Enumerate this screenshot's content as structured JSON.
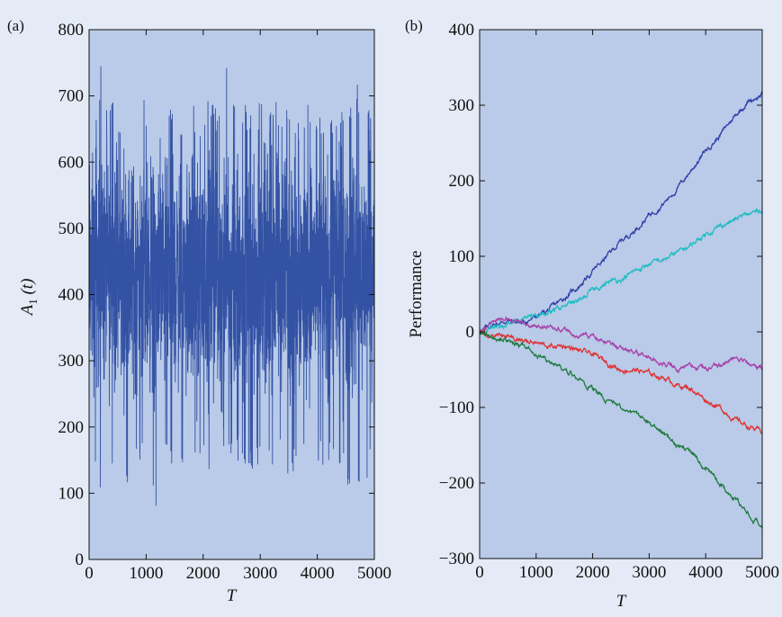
{
  "figure": {
    "background": "#e4ebf6",
    "plot_background": "#b9cbe8"
  },
  "chart_data": [
    {
      "type": "line",
      "panel_label": "(a)",
      "title": "",
      "xlabel": "T",
      "ylabel_main": "A",
      "ylabel_sub": "1",
      "ylabel_tail": " (t)",
      "xlim": [
        0,
        5000
      ],
      "ylim": [
        0,
        800
      ],
      "xticks": [
        0,
        1000,
        2000,
        3000,
        4000,
        5000
      ],
      "xtick_labels": [
        "0",
        "1000",
        "2000",
        "3000",
        "4000",
        "5000"
      ],
      "yticks": [
        0,
        100,
        200,
        300,
        400,
        500,
        600,
        700,
        800
      ],
      "ytick_labels": [
        "0",
        "100",
        "200",
        "300",
        "400",
        "500",
        "600",
        "700",
        "800"
      ],
      "grid": false,
      "series": [
        {
          "color": "#3452a3",
          "description_of_shape": "dense noisy fluctuation around ~430 over T=0..5000",
          "x": [
            0,
            50,
            100,
            150,
            200,
            300,
            400,
            500,
            600,
            700,
            800,
            900,
            1000,
            1100,
            1200,
            1250,
            1300,
            1400,
            1500,
            1600,
            1700,
            1800,
            1900,
            2000,
            2100,
            2200,
            2300,
            2400,
            2500,
            2600,
            2700,
            2800,
            2900,
            3000,
            3100,
            3200,
            3300,
            3400,
            3500,
            3600,
            3700,
            3800,
            3900,
            4000,
            4100,
            4200,
            4300,
            4400,
            4500,
            4600,
            4700,
            4800,
            4900,
            5000
          ],
          "upper_envelope": [
            690,
            770,
            730,
            650,
            760,
            690,
            700,
            660,
            700,
            690,
            660,
            710,
            690,
            700,
            730,
            660,
            700,
            690,
            690,
            680,
            660,
            700,
            690,
            660,
            700,
            690,
            690,
            750,
            700,
            690,
            700,
            680,
            660,
            700,
            690,
            680,
            700,
            670,
            690,
            680,
            660,
            680,
            700,
            690,
            680,
            680,
            680,
            690,
            660,
            700,
            720,
            700,
            680,
            660
          ],
          "lower_envelope": [
            250,
            170,
            140,
            100,
            80,
            140,
            130,
            150,
            90,
            100,
            140,
            130,
            150,
            110,
            30,
            140,
            150,
            130,
            140,
            150,
            140,
            150,
            130,
            140,
            130,
            160,
            150,
            170,
            140,
            150,
            130,
            140,
            120,
            140,
            150,
            130,
            140,
            150,
            120,
            130,
            150,
            140,
            120,
            150,
            140,
            150,
            130,
            140,
            110,
            70,
            90,
            100,
            120,
            180
          ]
        }
      ]
    },
    {
      "type": "line",
      "panel_label": "(b)",
      "title": "",
      "xlabel": "T",
      "ylabel": "Performance",
      "xlim": [
        0,
        5000
      ],
      "ylim": [
        -300,
        400
      ],
      "xticks": [
        0,
        1000,
        2000,
        3000,
        4000,
        5000
      ],
      "xtick_labels": [
        "0",
        "1000",
        "2000",
        "3000",
        "4000",
        "5000"
      ],
      "yticks": [
        -300,
        -200,
        -100,
        0,
        100,
        200,
        300,
        400
      ],
      "ytick_labels": [
        "−300",
        "−200",
        "−100",
        "0",
        "100",
        "200",
        "300",
        "400"
      ],
      "grid": false,
      "series": [
        {
          "color": "#2e3fa8",
          "x": [
            0,
            250,
            500,
            750,
            1000,
            1250,
            1500,
            1750,
            2000,
            2250,
            2500,
            2750,
            3000,
            3250,
            3500,
            3750,
            4000,
            4250,
            4500,
            4750,
            5000
          ],
          "y": [
            0,
            10,
            15,
            12,
            20,
            30,
            45,
            60,
            80,
            100,
            120,
            135,
            155,
            170,
            190,
            215,
            240,
            260,
            285,
            305,
            315
          ]
        },
        {
          "color": "#1fbcc2",
          "x": [
            0,
            250,
            500,
            750,
            1000,
            1250,
            1500,
            1750,
            2000,
            2250,
            2500,
            2750,
            3000,
            3250,
            3500,
            3750,
            4000,
            4250,
            4500,
            4750,
            5000
          ],
          "y": [
            0,
            8,
            10,
            15,
            22,
            25,
            35,
            40,
            55,
            65,
            70,
            80,
            90,
            95,
            105,
            115,
            130,
            140,
            148,
            155,
            162
          ]
        },
        {
          "color": "#a83ea8",
          "x": [
            0,
            250,
            500,
            750,
            1000,
            1250,
            1500,
            1750,
            2000,
            2250,
            2500,
            2750,
            3000,
            3250,
            3500,
            3750,
            4000,
            4250,
            4500,
            4750,
            5000
          ],
          "y": [
            0,
            15,
            18,
            12,
            5,
            8,
            0,
            -5,
            -5,
            -12,
            -20,
            -30,
            -35,
            -42,
            -48,
            -45,
            -48,
            -45,
            -35,
            -38,
            -48
          ]
        },
        {
          "color": "#e03030",
          "x": [
            0,
            250,
            500,
            750,
            1000,
            1250,
            1500,
            1750,
            2000,
            2250,
            2500,
            2750,
            3000,
            3250,
            3500,
            3750,
            4000,
            4250,
            4500,
            4750,
            5000
          ],
          "y": [
            0,
            -5,
            -8,
            -12,
            -15,
            -20,
            -18,
            -25,
            -30,
            -40,
            -50,
            -50,
            -55,
            -60,
            -70,
            -75,
            -90,
            -100,
            -115,
            -125,
            -133
          ]
        },
        {
          "color": "#1f7a3f",
          "x": [
            0,
            250,
            500,
            750,
            1000,
            1250,
            1500,
            1750,
            2000,
            2250,
            2500,
            2750,
            3000,
            3250,
            3500,
            3750,
            4000,
            4250,
            4500,
            4750,
            5000
          ],
          "y": [
            0,
            -8,
            -12,
            -18,
            -30,
            -40,
            -50,
            -60,
            -75,
            -90,
            -100,
            -110,
            -122,
            -135,
            -150,
            -160,
            -180,
            -200,
            -220,
            -240,
            -255
          ]
        }
      ]
    }
  ]
}
